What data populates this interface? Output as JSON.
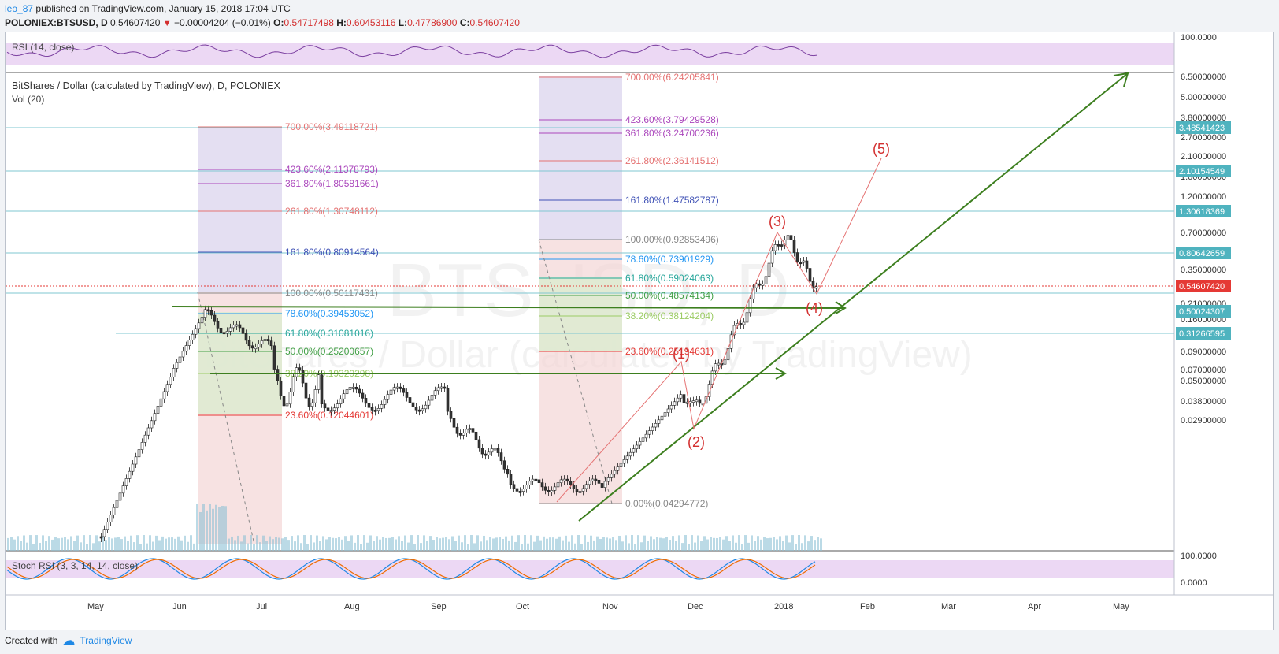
{
  "header": {
    "publisher": "leo_87",
    "published_text": "published on TradingView.com, January 15, 2018 17:04 UTC",
    "symbol": "POLONIEX:BTSUSD, D",
    "last": "0.54607420",
    "change": "−0.00004204 (−0.01%)",
    "o_label": "O:",
    "o_val": "0.54717498",
    "h_label": "H:",
    "h_val": "0.60453116",
    "l_label": "L:",
    "l_val": "0.47786900",
    "c_label": "C:",
    "c_val": "0.54607420"
  },
  "panes": {
    "rsi_label": "RSI (14, close)",
    "main_label": "BitShares / Dollar (calculated by TradingView), D, POLONIEX",
    "vol_label": "Vol (20)",
    "stoch_label": "Stoch RSI (3, 3, 14, 14, close)",
    "watermark_symbol": "BTSUSD, D",
    "watermark_name": "BitShares / Dollar (calculated by TradingView)"
  },
  "price_axis": [
    "6.50000000",
    "5.00000000",
    "3.80000000",
    "2.70000000",
    "2.10000000",
    "1.60000000",
    "1.20000000",
    "0.90000000",
    "0.70000000",
    "0.50000000",
    "0.35000000",
    "0.27000000",
    "0.21000000",
    "0.16000000",
    "0.12000000",
    "0.09000000",
    "0.07000000",
    "0.05000000",
    "0.03800000",
    "0.02900000"
  ],
  "price_badges": [
    {
      "label": "3.48541423",
      "color": "#4fb3bf"
    },
    {
      "label": "2.10154549",
      "color": "#4fb3bf"
    },
    {
      "label": "1.30618369",
      "color": "#4fb3bf"
    },
    {
      "label": "0.80642659",
      "color": "#4fb3bf"
    },
    {
      "label": "0.54607420",
      "color": "#e53935"
    },
    {
      "label": "0.50024307",
      "color": "#4fb3bf"
    },
    {
      "label": "0.31266595",
      "color": "#4fb3bf"
    }
  ],
  "rsi_axis": [
    "100.0000"
  ],
  "stoch_axis": [
    "100.0000",
    "0.0000"
  ],
  "time_axis": [
    "May",
    "Jun",
    "Jul",
    "Aug",
    "Sep",
    "Oct",
    "Nov",
    "Dec",
    "2018",
    "Feb",
    "Mar",
    "Apr",
    "May"
  ],
  "fib1": [
    {
      "label": "700.00%(3.49118721)",
      "color": "#e57373"
    },
    {
      "label": "423.60%(2.11378793)",
      "color": "#ab47bc"
    },
    {
      "label": "361.80%(1.80581661)",
      "color": "#ab47bc"
    },
    {
      "label": "261.80%(1.30748112)",
      "color": "#e57373"
    },
    {
      "label": "161.80%(0.80914564)",
      "color": "#3f51b5"
    },
    {
      "label": "100.00%(0.50117431)",
      "color": "#888888"
    },
    {
      "label": "78.60%(0.39453052)",
      "color": "#2196f3"
    },
    {
      "label": "61.80%(0.31081016)",
      "color": "#26a69a"
    },
    {
      "label": "50.00%(0.25200657)",
      "color": "#43a047"
    },
    {
      "label": "38.20%(0.19320298)",
      "color": "#9ccc65"
    },
    {
      "label": "23.60%(0.12044601)",
      "color": "#e53935"
    }
  ],
  "fib2": [
    {
      "label": "700.00%(6.24205841)",
      "color": "#e57373"
    },
    {
      "label": "423.60%(3.79429528)",
      "color": "#ab47bc"
    },
    {
      "label": "361.80%(3.24700236)",
      "color": "#ab47bc"
    },
    {
      "label": "261.80%(2.36141512)",
      "color": "#e57373"
    },
    {
      "label": "161.80%(1.47582787)",
      "color": "#3f51b5"
    },
    {
      "label": "100.00%(0.92853496)",
      "color": "#888888"
    },
    {
      "label": "78.60%(0.73901929)",
      "color": "#2196f3"
    },
    {
      "label": "61.80%(0.59024063)",
      "color": "#26a69a"
    },
    {
      "label": "50.00%(0.48574134)",
      "color": "#43a047"
    },
    {
      "label": "38.20%(0.38124204)",
      "color": "#9ccc65"
    },
    {
      "label": "23.60%(0.25194631)",
      "color": "#e53935"
    },
    {
      "label": "0.00%(0.04294772)",
      "color": "#888888"
    }
  ],
  "waves": [
    "(1)",
    "(2)",
    "(3)",
    "(4)",
    "(5)"
  ],
  "footer": {
    "created_with": "Created with",
    "brand": "TradingView"
  }
}
